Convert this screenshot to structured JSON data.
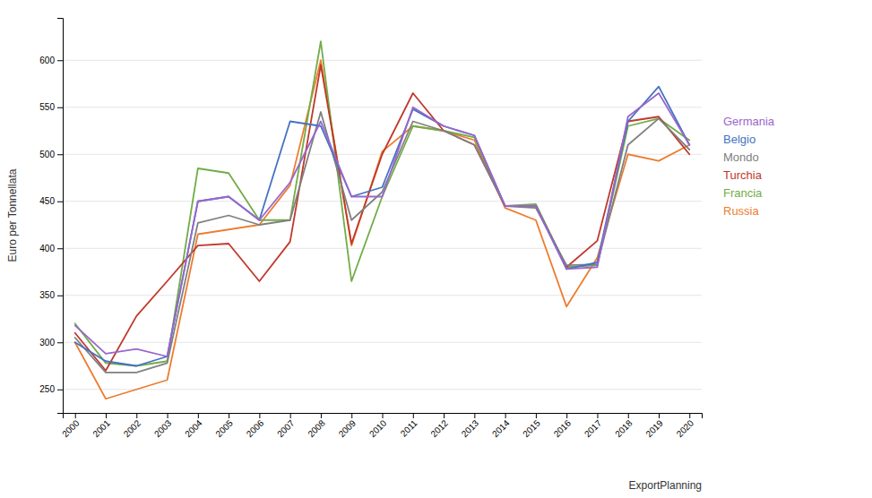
{
  "chart_data": {
    "type": "line",
    "x": [
      2000,
      2001,
      2002,
      2003,
      2004,
      2005,
      2006,
      2007,
      2008,
      2009,
      2010,
      2011,
      2012,
      2013,
      2014,
      2015,
      2016,
      2017,
      2018,
      2019,
      2020
    ],
    "series": [
      {
        "name": "Germania",
        "color": "#9966cc",
        "values": [
          318,
          288,
          293,
          285,
          450,
          455,
          430,
          470,
          535,
          455,
          455,
          550,
          530,
          520,
          445,
          445,
          378,
          380,
          540,
          565,
          510
        ]
      },
      {
        "name": "Belgio",
        "color": "#4472c4",
        "values": [
          300,
          280,
          275,
          285,
          450,
          455,
          430,
          535,
          530,
          455,
          465,
          548,
          530,
          520,
          445,
          445,
          378,
          385,
          535,
          572,
          510
        ]
      },
      {
        "name": "Mondo",
        "color": "#808080",
        "values": [
          305,
          268,
          268,
          278,
          427,
          435,
          425,
          430,
          545,
          430,
          460,
          535,
          525,
          510,
          445,
          443,
          382,
          383,
          510,
          538,
          505
        ]
      },
      {
        "name": "Turchia",
        "color": "#c0392b",
        "values": [
          310,
          270,
          328,
          365,
          403,
          405,
          365,
          407,
          595,
          405,
          500,
          565,
          525,
          510,
          445,
          445,
          380,
          408,
          535,
          540,
          500
        ]
      },
      {
        "name": "Francia",
        "color": "#70ad47",
        "values": [
          320,
          278,
          275,
          280,
          485,
          480,
          430,
          430,
          620,
          365,
          455,
          530,
          525,
          518,
          445,
          447,
          380,
          382,
          530,
          538,
          515
        ]
      },
      {
        "name": "Russia",
        "color": "#ed7d31",
        "values": [
          300,
          240,
          250,
          260,
          415,
          420,
          425,
          467,
          600,
          403,
          503,
          530,
          525,
          515,
          443,
          430,
          338,
          390,
          500,
          493,
          510
        ]
      }
    ],
    "ylabel": "Euro per Tonnellata",
    "xlabel": "ExportPlanning",
    "xlim": [
      1999.6,
      2020.4
    ],
    "xticks": [
      2000,
      2001,
      2002,
      2003,
      2004,
      2005,
      2006,
      2007,
      2008,
      2009,
      2010,
      2011,
      2012,
      2013,
      2014,
      2015,
      2016,
      2017,
      2018,
      2019,
      2020
    ],
    "ylim": [
      225,
      645
    ],
    "yticks": [
      250,
      300,
      350,
      400,
      450,
      500,
      550,
      600
    ],
    "grid": true,
    "legend": "right"
  }
}
